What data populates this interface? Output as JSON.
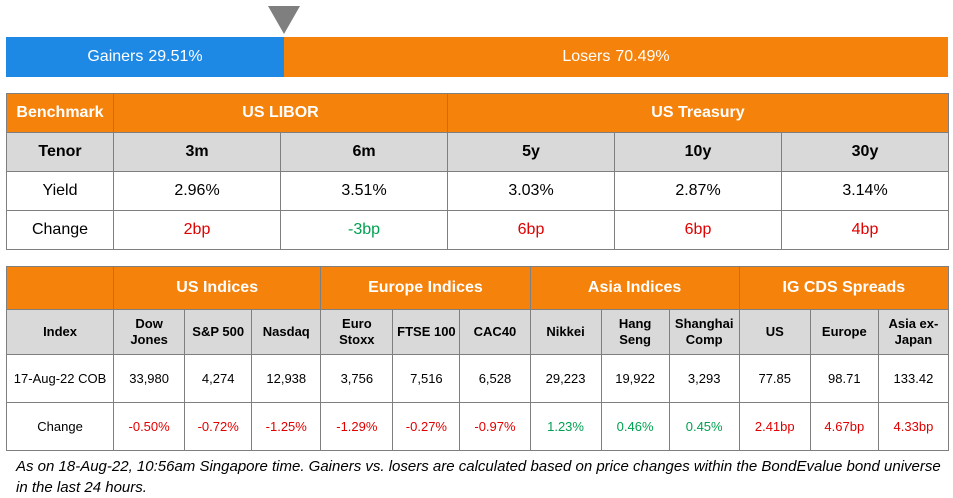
{
  "sentiment": {
    "gainers_label": "Gainers",
    "gainers_value": "29.51%",
    "gainers_pct": 29.51,
    "losers_label": "Losers",
    "losers_value": "70.49%",
    "losers_pct": 70.49,
    "colors": {
      "gainers": "#1e88e5",
      "losers": "#f5820b",
      "pointer": "#7f7f7f"
    }
  },
  "rates": {
    "benchmark_label": "Benchmark",
    "libor_label": "US LIBOR",
    "treasury_label": "US Treasury",
    "tenor_label": "Tenor",
    "yield_label": "Yield",
    "change_label": "Change",
    "tenors": [
      "3m",
      "6m",
      "5y",
      "10y",
      "30y"
    ],
    "yields": [
      "2.96%",
      "3.51%",
      "3.03%",
      "2.87%",
      "3.14%"
    ],
    "changes": [
      "2bp",
      "-3bp",
      "6bp",
      "6bp",
      "4bp"
    ],
    "change_directions": [
      "up",
      "down",
      "up",
      "up",
      "up"
    ]
  },
  "indices": {
    "groups": [
      "US Indices",
      "Europe Indices",
      "Asia Indices",
      "IG CDS Spreads"
    ],
    "index_label": "Index",
    "columns": [
      [
        "Dow",
        "Jones"
      ],
      [
        "S&P 500"
      ],
      [
        "Nasdaq"
      ],
      [
        "Euro",
        "Stoxx"
      ],
      [
        "FTSE 100"
      ],
      [
        "CAC40"
      ],
      [
        "Nikkei"
      ],
      [
        "Hang",
        "Seng"
      ],
      [
        "Shanghai",
        "Comp"
      ],
      [
        "US"
      ],
      [
        "Europe"
      ],
      [
        "Asia ex-",
        "Japan"
      ]
    ],
    "date_label": "17-Aug-22 COB",
    "values": [
      "33,980",
      "4,274",
      "12,938",
      "3,756",
      "7,516",
      "6,528",
      "29,223",
      "19,922",
      "3,293",
      "77.85",
      "98.71",
      "133.42"
    ],
    "change_label": "Change",
    "changes": [
      "-0.50%",
      "-0.72%",
      "-1.25%",
      "-1.29%",
      "-0.27%",
      "-0.97%",
      "1.23%",
      "0.46%",
      "0.45%",
      "2.41bp",
      "4.67bp",
      "4.33bp"
    ],
    "change_directions": [
      "red",
      "red",
      "red",
      "red",
      "red",
      "red",
      "green",
      "green",
      "green",
      "red",
      "red",
      "red"
    ]
  },
  "footnote": "As on 18-Aug-22, 10:56am Singapore time. Gainers vs. losers are calculated based on price changes within the BondEvalue bond universe in the last 24 hours."
}
